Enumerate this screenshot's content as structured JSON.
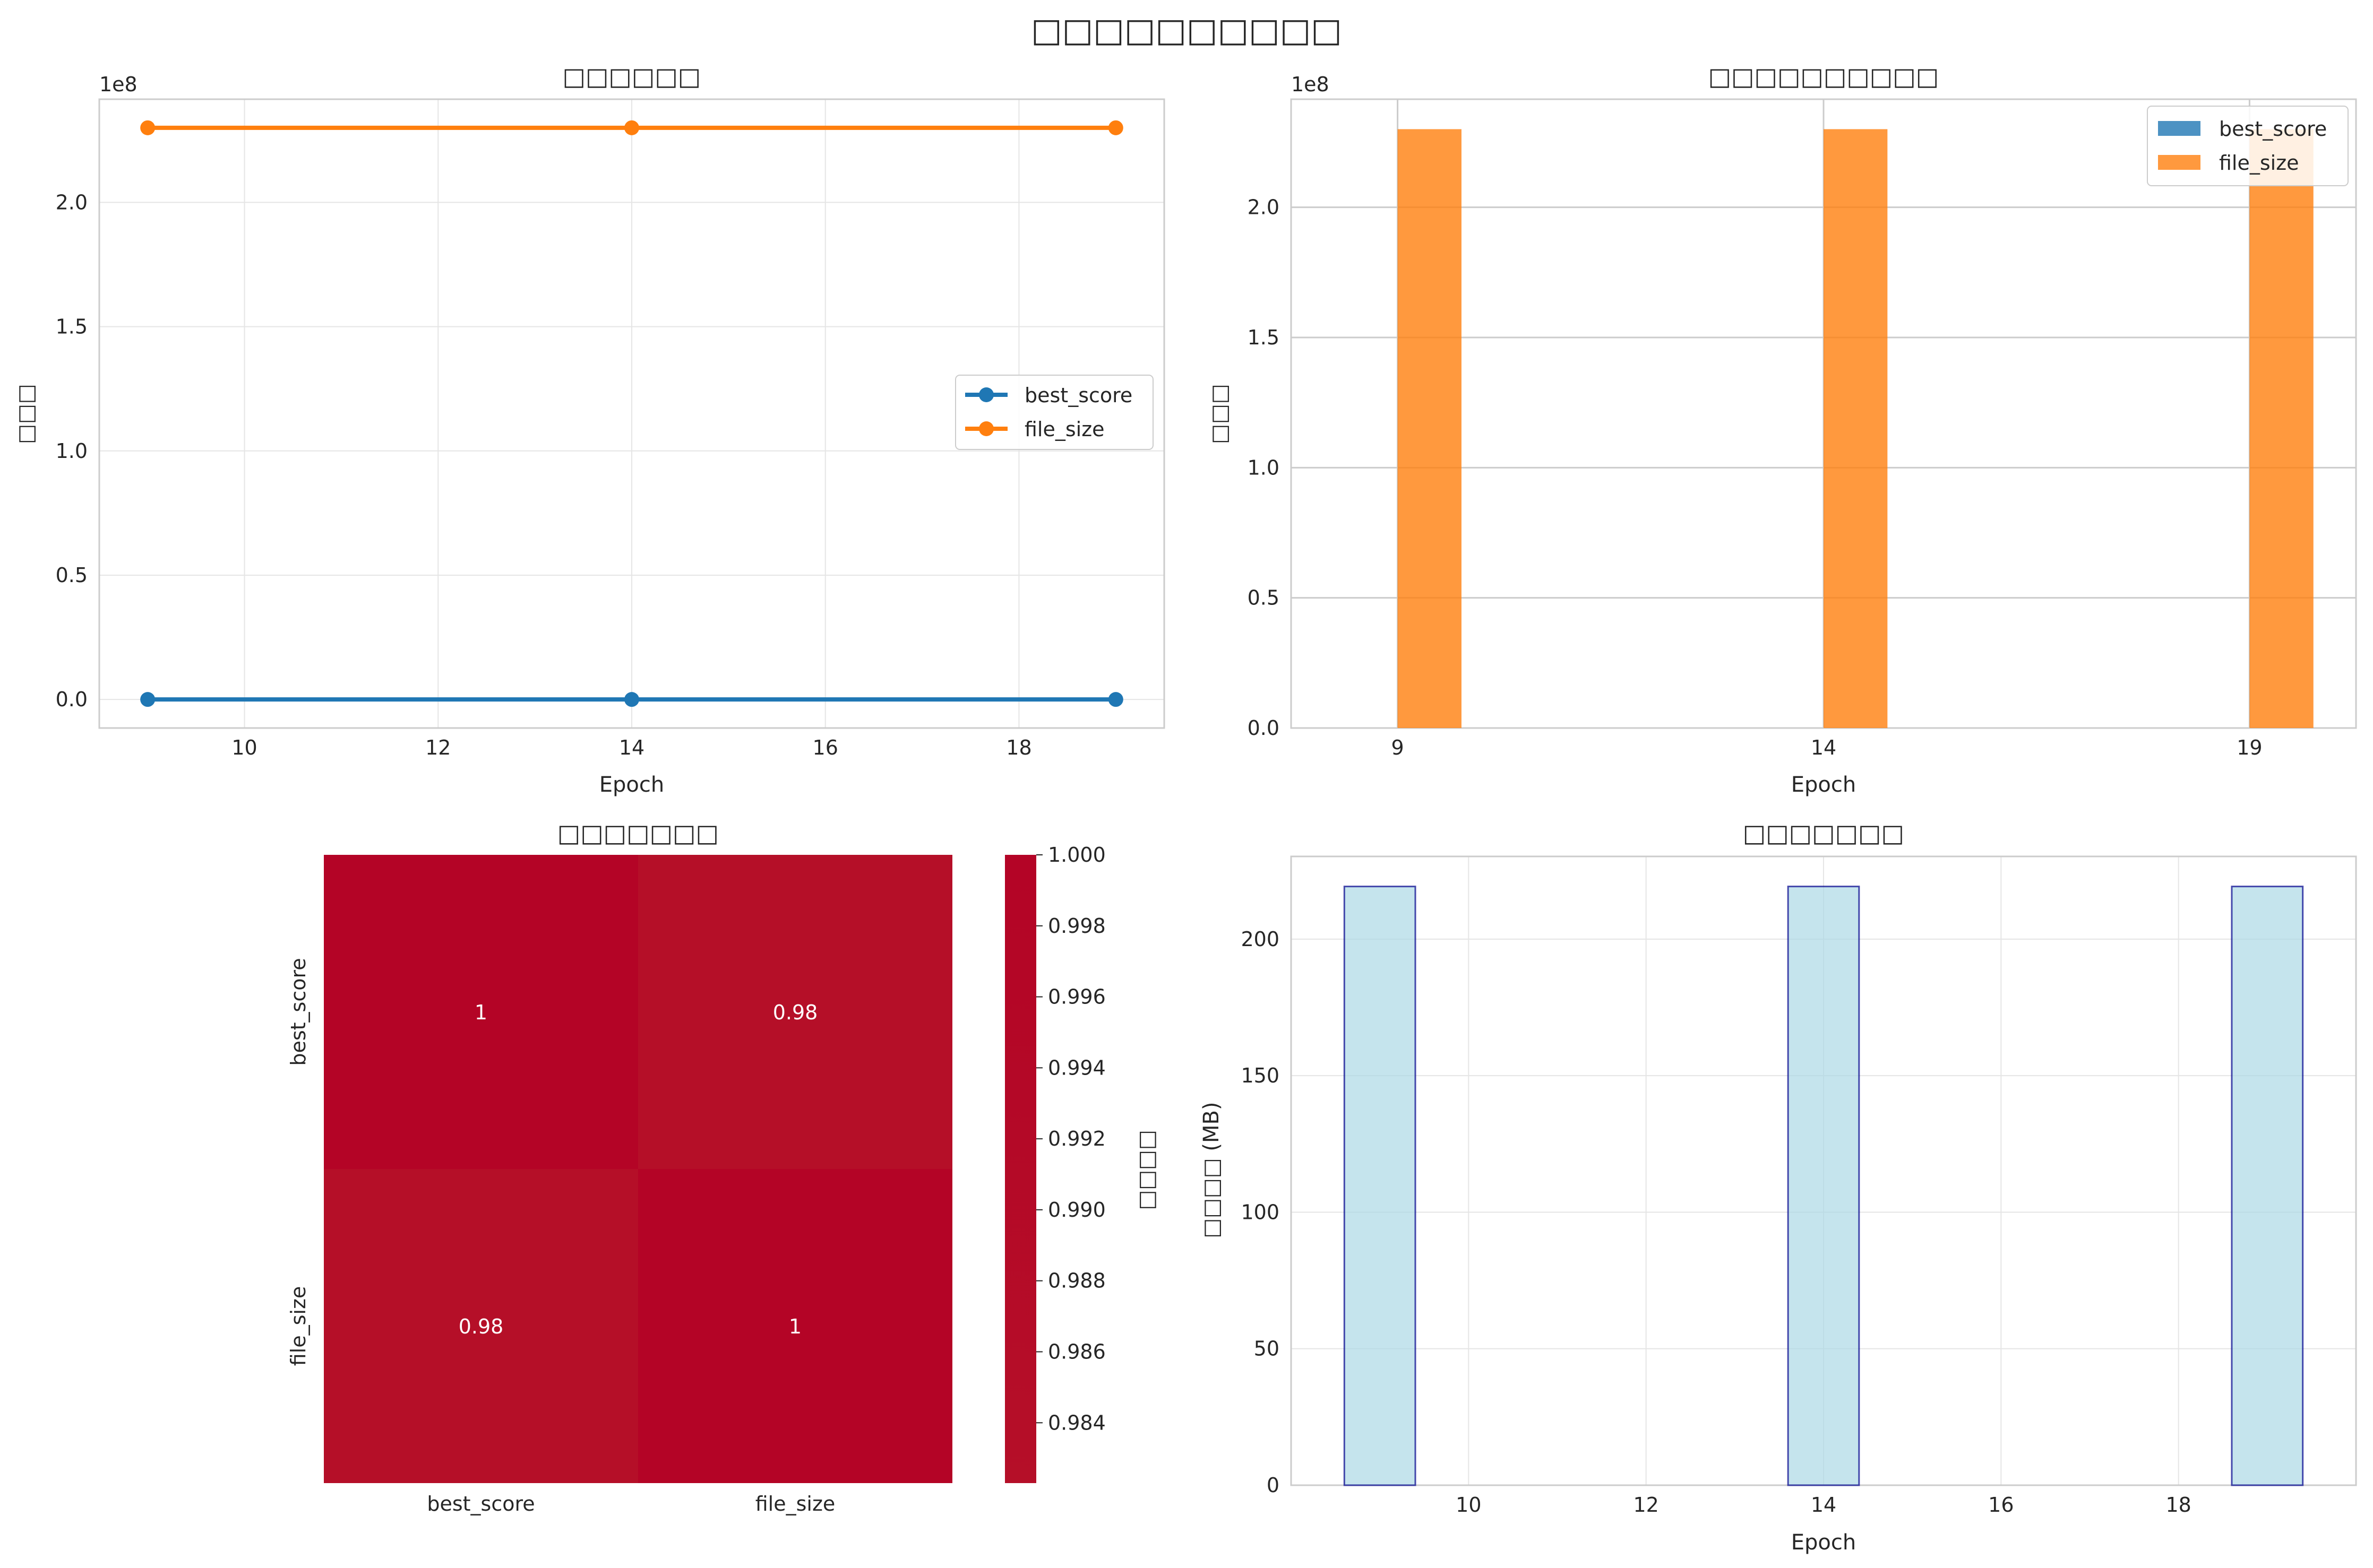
{
  "figure": {
    "suptitle": "□□□□□□□□□□"
  },
  "colors": {
    "best_score": "#1f77b4",
    "file_size": "#ff7f0e",
    "bar_fill": "#add8e6",
    "bar_edge": "#00008b",
    "heat_high": "#b40426",
    "heat_low": "#b50f28",
    "grid": "#e5e5e5",
    "axes_edge": "#cccccc"
  },
  "chart_data": [
    {
      "type": "line",
      "title": "□□□□□□",
      "xlabel": "Epoch",
      "ylabel": "□□□",
      "offset_text": "1e8",
      "x": [
        9,
        14,
        19
      ],
      "series": [
        {
          "name": "best_score",
          "values": [
            0.0,
            0.0,
            0.0
          ]
        },
        {
          "name": "file_size",
          "values": [
            230000000,
            230000000,
            230000000
          ]
        }
      ],
      "xlim": [
        8.5,
        19.5
      ],
      "ylim": [
        -11500000,
        241500000
      ],
      "xticks": [
        10,
        12,
        14,
        16,
        18
      ],
      "xtick_labels": [
        "10",
        "12",
        "14",
        "16",
        "18"
      ],
      "yticks": [
        0,
        50000000,
        100000000,
        150000000,
        200000000
      ],
      "ytick_labels": [
        "0.0",
        "0.5",
        "1.0",
        "1.5",
        "2.0"
      ],
      "grid": true,
      "legend": "center-right"
    },
    {
      "type": "bar",
      "title": "□□□□□□□□□□",
      "xlabel": "Epoch",
      "ylabel": "□□□",
      "offset_text": "1e8",
      "categories": [
        "9",
        "14",
        "19"
      ],
      "series": [
        {
          "name": "best_score",
          "values": [
            0.0,
            0.0,
            0.0
          ]
        },
        {
          "name": "file_size",
          "values": [
            230000000,
            230000000,
            230000000
          ]
        }
      ],
      "ylim": [
        0,
        241500000
      ],
      "yticks": [
        0,
        50000000,
        100000000,
        150000000,
        200000000
      ],
      "ytick_labels": [
        "0.0",
        "0.5",
        "1.0",
        "1.5",
        "2.0"
      ],
      "grid": "y",
      "legend": "top-right"
    },
    {
      "type": "heatmap",
      "title": "□□□□□□□",
      "rows": [
        "best_score",
        "file_size"
      ],
      "cols": [
        "best_score",
        "file_size"
      ],
      "values": [
        [
          1,
          0.98
        ],
        [
          0.98,
          1
        ]
      ],
      "annotations": [
        [
          "1",
          "0.98"
        ],
        [
          "0.98",
          "1"
        ]
      ],
      "colorbar": {
        "label": "□□□□",
        "ticks": [
          0.984,
          0.986,
          0.988,
          0.99,
          0.992,
          0.994,
          0.996,
          0.998,
          1.0
        ],
        "tick_labels": [
          "0.984",
          "0.986",
          "0.988",
          "0.990",
          "0.992",
          "0.994",
          "0.996",
          "0.998",
          "1.000"
        ],
        "range": [
          0.9823,
          1.0
        ]
      }
    },
    {
      "type": "bar",
      "title": "□□□□□□□",
      "xlabel": "Epoch",
      "ylabel": "□□□□ (MB)",
      "x": [
        9,
        14,
        19
      ],
      "values": [
        219.3,
        219.3,
        219.3
      ],
      "xlim": [
        8.0,
        20.0
      ],
      "ylim": [
        0,
        230.3
      ],
      "xticks": [
        10,
        12,
        14,
        16,
        18
      ],
      "xtick_labels": [
        "10",
        "12",
        "14",
        "16",
        "18"
      ],
      "yticks": [
        0,
        50,
        100,
        150,
        200
      ],
      "ytick_labels": [
        "0",
        "50",
        "100",
        "150",
        "200"
      ],
      "grid": true
    }
  ]
}
